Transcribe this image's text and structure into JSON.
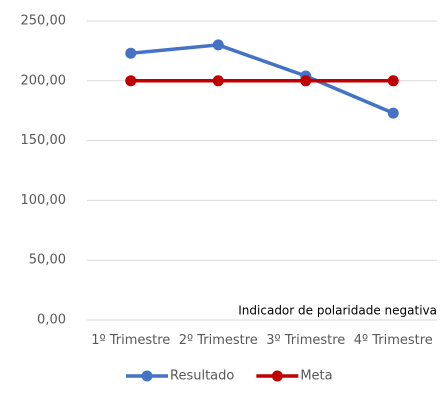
{
  "chart_data": {
    "type": "line",
    "categories": [
      "1º Trimestre",
      "2º Trimestre",
      "3º Trimestre",
      "4º Trimestre"
    ],
    "series": [
      {
        "name": "Resultado",
        "color": "#4472c4",
        "values": [
          223,
          230,
          204,
          173
        ]
      },
      {
        "name": "Meta",
        "color": "#c00000",
        "values": [
          200,
          200,
          200,
          200
        ]
      }
    ],
    "ylim": [
      0,
      250
    ],
    "yticks": [
      {
        "value": 0,
        "label": "0,00"
      },
      {
        "value": 50,
        "label": "50,00"
      },
      {
        "value": 100,
        "label": "100,00"
      },
      {
        "value": 150,
        "label": "150,00"
      },
      {
        "value": 200,
        "label": "200,00"
      },
      {
        "value": 250,
        "label": "250,00"
      }
    ],
    "annotation": "Indicador de polaridade negativa",
    "grid": true,
    "legend": "bottom"
  }
}
